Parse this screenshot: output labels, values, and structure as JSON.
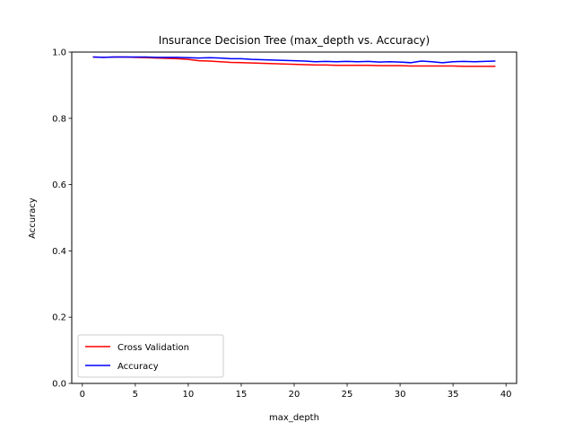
{
  "chart_data": {
    "type": "line",
    "title": "Insurance Decision Tree (max_depth vs. Accuracy)",
    "xlabel": "max_depth",
    "ylabel": "Accuracy",
    "xlim": [
      -1,
      41
    ],
    "ylim": [
      0.0,
      1.0
    ],
    "xticks": [
      0,
      5,
      10,
      15,
      20,
      25,
      30,
      35,
      40
    ],
    "yticks": [
      0.0,
      0.2,
      0.4,
      0.6,
      0.8,
      1.0
    ],
    "xtick_labels": [
      "0",
      "5",
      "10",
      "15",
      "20",
      "25",
      "30",
      "35",
      "40"
    ],
    "ytick_labels": [
      "0.0",
      "0.2",
      "0.4",
      "0.6",
      "0.8",
      "1.0"
    ],
    "grid": false,
    "legend_position": "lower-left",
    "x": [
      1,
      2,
      3,
      4,
      5,
      6,
      7,
      8,
      9,
      10,
      11,
      12,
      13,
      14,
      15,
      16,
      17,
      18,
      19,
      20,
      21,
      22,
      23,
      24,
      25,
      26,
      27,
      28,
      29,
      30,
      31,
      32,
      33,
      34,
      35,
      36,
      37,
      38,
      39
    ],
    "series": [
      {
        "name": "Cross Validation",
        "color": "#ff0000",
        "values": [
          0.985,
          0.984,
          0.985,
          0.985,
          0.984,
          0.983,
          0.982,
          0.981,
          0.98,
          0.978,
          0.974,
          0.973,
          0.971,
          0.969,
          0.968,
          0.967,
          0.966,
          0.965,
          0.964,
          0.963,
          0.962,
          0.961,
          0.961,
          0.96,
          0.96,
          0.96,
          0.96,
          0.959,
          0.959,
          0.959,
          0.958,
          0.958,
          0.958,
          0.958,
          0.958,
          0.957,
          0.957,
          0.957,
          0.957
        ]
      },
      {
        "name": "Accuracy",
        "color": "#0000ff",
        "values": [
          0.985,
          0.984,
          0.985,
          0.985,
          0.985,
          0.985,
          0.984,
          0.984,
          0.984,
          0.983,
          0.982,
          0.983,
          0.982,
          0.98,
          0.98,
          0.978,
          0.977,
          0.976,
          0.975,
          0.974,
          0.973,
          0.971,
          0.972,
          0.971,
          0.972,
          0.971,
          0.972,
          0.97,
          0.971,
          0.97,
          0.968,
          0.973,
          0.971,
          0.968,
          0.971,
          0.972,
          0.971,
          0.972,
          0.973
        ]
      }
    ]
  }
}
